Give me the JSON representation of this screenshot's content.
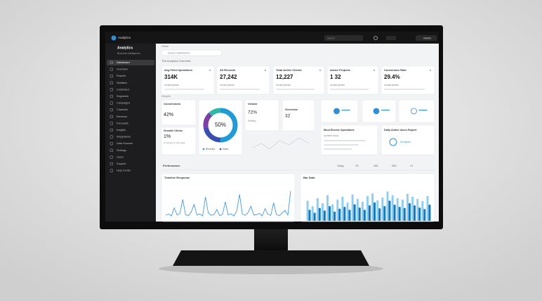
{
  "topbar": {
    "brand": "Analytics",
    "search": "Search",
    "user": "Admin"
  },
  "sidebar": {
    "title": "Analytics",
    "subtitle": "Business intelligence",
    "items": [
      "Dashboard",
      "Overview",
      "Reports",
      "Statistics",
      "Customers",
      "Segments",
      "Campaigns",
      "Channels",
      "Revenue",
      "Forecasts",
      "Insights",
      "Integrations",
      "Data Sources",
      "Settings",
      "Users",
      "Support",
      "Help Center"
    ]
  },
  "breadcrumb": "Home",
  "search": "Search dashboards",
  "section_title": "The Analytics Overview",
  "kpis": [
    {
      "label": "Avg Field Operations",
      "value": "314K",
      "note": "vs last period"
    },
    {
      "label": "All Records",
      "value": "27,242",
      "note": "vs last period"
    },
    {
      "label": "Total Active Clients",
      "value": "12,227",
      "note": "vs last period"
    },
    {
      "label": "Active Projects",
      "value": "1 32",
      "note": "vs last period"
    },
    {
      "label": "Conversion Rate",
      "value": "29.4%",
      "note": "vs last period"
    }
  ],
  "widgets_label": "Widgets",
  "conversions": {
    "title": "Conversions",
    "value": "42%"
  },
  "growth": {
    "title": "Growth Clicks",
    "value": "1%",
    "note": "Compared to last week"
  },
  "donut": {
    "center": "50%",
    "values": [
      50,
      22,
      16,
      12
    ],
    "colors": [
      "#1f9bd7",
      "#3a4db0",
      "#7b3fa6",
      "#2db9a6"
    ],
    "legend": [
      "Revenue",
      "Sales"
    ]
  },
  "vendor": {
    "title": "Vendor",
    "value": "72%",
    "note": "Monthly"
  },
  "overview": {
    "title": "Overview",
    "value": "32"
  },
  "recent": {
    "title": "Most Recent Operations",
    "note": "Updated hourly"
  },
  "daily": {
    "title": "Daily Active Users Report",
    "note": "All regions"
  },
  "performance": {
    "title": "Performance",
    "filters": [
      "Today",
      "7D",
      "30D",
      "90D",
      "1Y"
    ]
  },
  "line_chart": {
    "title": "Timeline Response",
    "color": "#2f8fd8",
    "ylim": [
      0,
      100
    ],
    "values": [
      8,
      12,
      6,
      30,
      9,
      14,
      55,
      10,
      7,
      18,
      40,
      9,
      12,
      6,
      62,
      15,
      8,
      10,
      25,
      7,
      11,
      48,
      9,
      13,
      6,
      20,
      70,
      12,
      8,
      16,
      35,
      9,
      10,
      14,
      6,
      28,
      11,
      8,
      45,
      10,
      7,
      15,
      22,
      9,
      80
    ]
  },
  "bar_chart": {
    "title": "Bar Data",
    "ylim": [
      0,
      100
    ],
    "series": [
      {
        "color": "#8ccff0",
        "values": [
          55,
          40,
          62,
          48,
          70,
          45,
          58,
          66,
          50,
          72,
          60,
          52,
          68,
          75,
          56,
          64,
          80,
          70,
          62,
          58,
          74,
          66,
          60,
          54,
          68
        ]
      },
      {
        "color": "#1677bd",
        "values": [
          30,
          22,
          35,
          28,
          40,
          25,
          33,
          38,
          30,
          45,
          36,
          30,
          42,
          50,
          34,
          40,
          55,
          44,
          38,
          35,
          48,
          42,
          36,
          32,
          44
        ]
      }
    ]
  }
}
